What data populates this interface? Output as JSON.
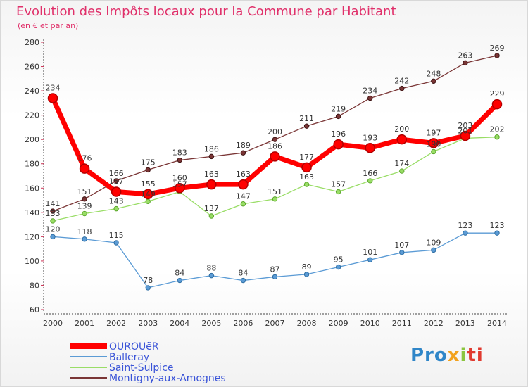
{
  "chart_data": {
    "type": "line",
    "title": "Evolution des Impôts locaux pour la Commune par Habitant",
    "subtitle": "(en € et par an)",
    "xlabel": "",
    "ylabel": "",
    "ylim": [
      60,
      280
    ],
    "yticks": [
      60,
      80,
      100,
      120,
      140,
      160,
      180,
      200,
      220,
      240,
      260,
      280
    ],
    "categories": [
      "2000",
      "2001",
      "2002",
      "2003",
      "2004",
      "2005",
      "2006",
      "2007",
      "2008",
      "2009",
      "2010",
      "2011",
      "2012",
      "2013",
      "2014"
    ],
    "grid": false,
    "legend_position": "bottom-left",
    "series": [
      {
        "name": "OUROUëR",
        "color": "#ff0000",
        "values": [
          234,
          176,
          157,
          155,
          160,
          163,
          163,
          186,
          177,
          196,
          193,
          200,
          197,
          203,
          229
        ]
      },
      {
        "name": "Balleray",
        "color": "#5b9bd5",
        "values": [
          120,
          118,
          115,
          78,
          84,
          88,
          84,
          87,
          89,
          95,
          101,
          107,
          109,
          123,
          123
        ]
      },
      {
        "name": "Saint-Sulpice",
        "color": "#99dd66",
        "values": [
          133,
          139,
          143,
          149,
          157,
          137,
          147,
          151,
          163,
          157,
          166,
          174,
          190,
          201,
          202
        ]
      },
      {
        "name": "Montigny-aux-Amognes",
        "color": "#7a3535",
        "values": [
          141,
          151,
          166,
          175,
          183,
          186,
          189,
          200,
          211,
          219,
          234,
          242,
          248,
          263,
          269
        ]
      }
    ]
  },
  "branding": {
    "logo_parts": [
      "Pro",
      "x",
      "i",
      "ti"
    ],
    "logo_text": "Proxiti"
  }
}
